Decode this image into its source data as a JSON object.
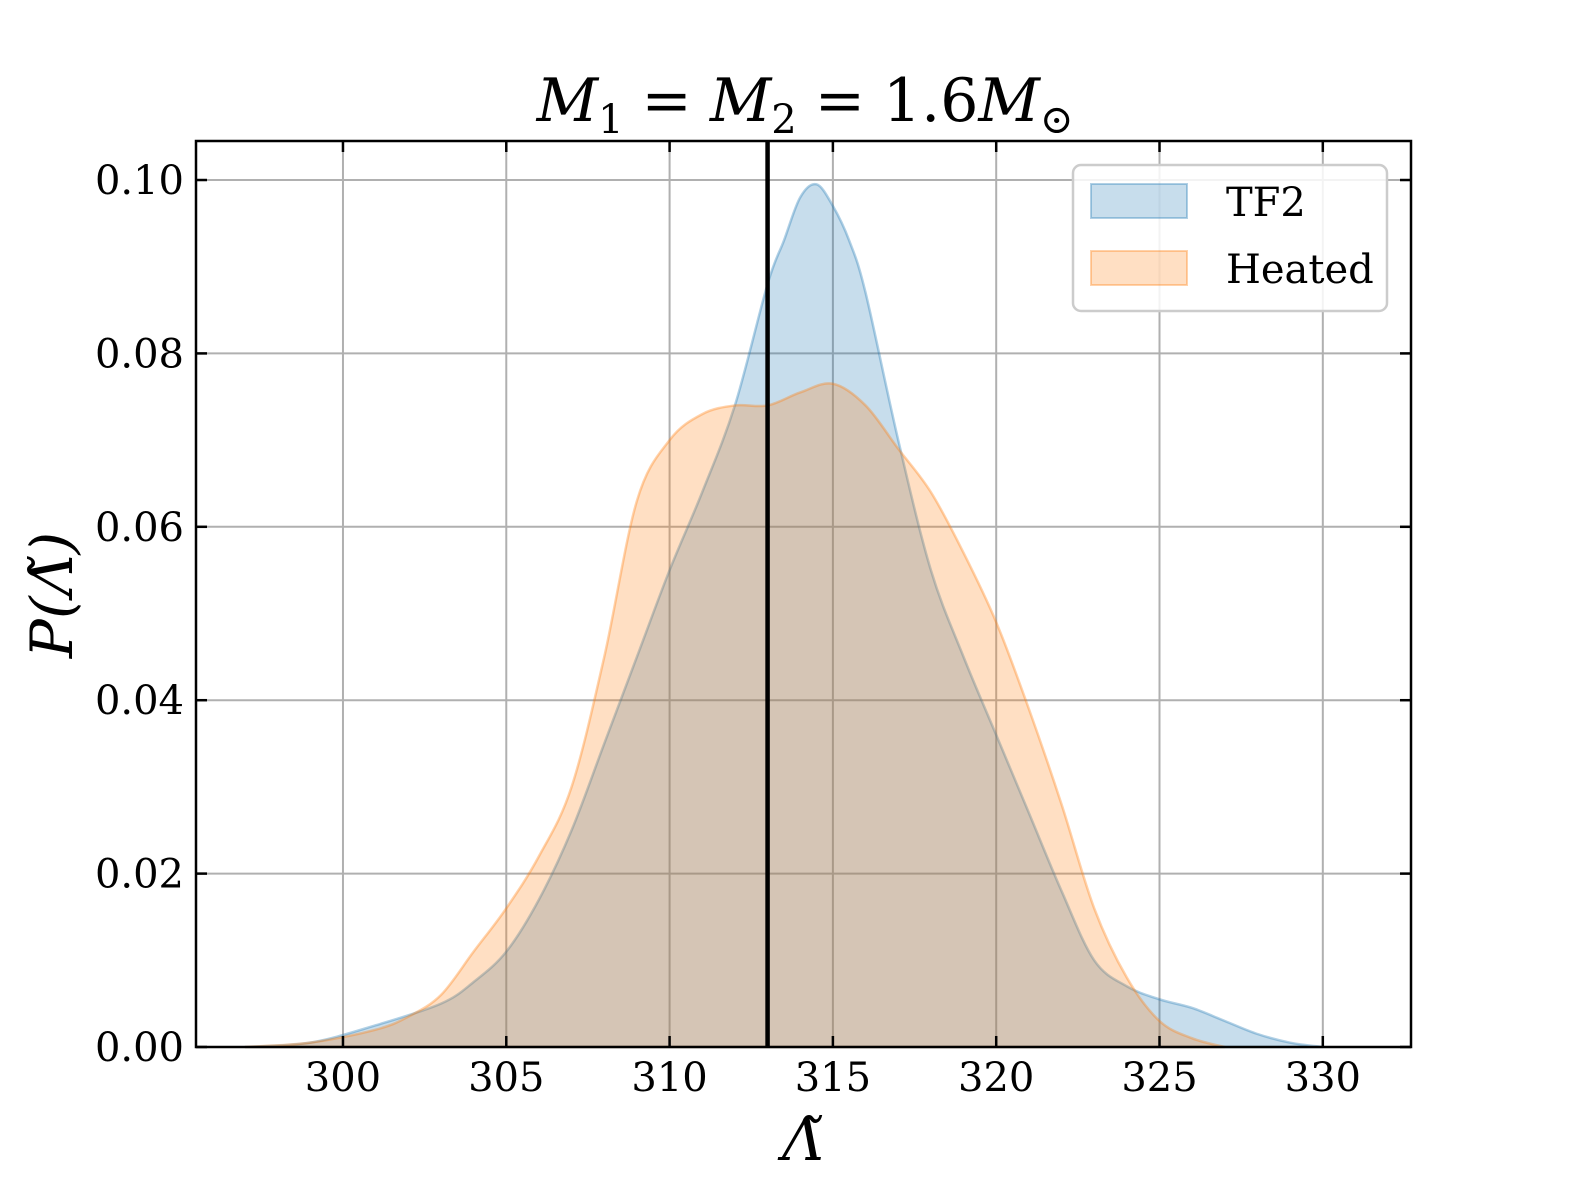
{
  "chart_data": {
    "type": "area",
    "title": {
      "symbol": "M",
      "sub1": "1",
      "sub2": "2",
      "value": "1.6",
      "unit_symbol": "M",
      "unit_sub": "⊙",
      "equals": "="
    },
    "xlabel": "Λ̃",
    "ylabel": "P(Λ̃)",
    "xlim": [
      295.5,
      332.7
    ],
    "ylim": [
      0.0,
      0.1045
    ],
    "xticks": [
      300,
      305,
      310,
      315,
      320,
      325,
      330
    ],
    "xtick_labels": [
      "300",
      "305",
      "310",
      "315",
      "320",
      "325",
      "330"
    ],
    "yticks": [
      0.0,
      0.02,
      0.04,
      0.06,
      0.08,
      0.1
    ],
    "ytick_labels": [
      "0.00",
      "0.02",
      "0.04",
      "0.06",
      "0.08",
      "0.10"
    ],
    "grid": true,
    "legend_position": "top-right",
    "vline": {
      "x": 313.0,
      "color": "#000000"
    },
    "series": [
      {
        "name": "TF2",
        "color": "#1f77b4",
        "alpha": 0.25,
        "x": [
          297,
          299,
          301,
          303,
          304,
          305,
          306,
          307,
          308,
          309,
          310,
          311,
          312,
          313,
          313.5,
          314,
          314.5,
          315,
          315.5,
          316,
          317,
          318,
          319,
          320,
          321,
          322,
          323,
          324,
          325,
          326,
          327,
          328,
          329,
          330
        ],
        "values": [
          0.0,
          0.0005,
          0.0025,
          0.005,
          0.0075,
          0.011,
          0.017,
          0.025,
          0.035,
          0.045,
          0.055,
          0.064,
          0.074,
          0.088,
          0.093,
          0.098,
          0.0995,
          0.097,
          0.093,
          0.087,
          0.07,
          0.055,
          0.045,
          0.036,
          0.027,
          0.018,
          0.01,
          0.007,
          0.0055,
          0.0045,
          0.003,
          0.0015,
          0.0005,
          0.0
        ]
      },
      {
        "name": "Heated",
        "color": "#ff7f0e",
        "alpha": 0.25,
        "x": [
          297,
          299,
          301,
          302,
          303,
          304,
          305,
          306,
          307,
          308,
          309,
          310,
          311,
          312,
          313,
          314,
          315,
          316,
          317,
          318,
          319,
          320,
          321,
          322,
          323,
          324,
          325,
          326,
          327
        ],
        "values": [
          0.0,
          0.0005,
          0.002,
          0.0035,
          0.006,
          0.011,
          0.016,
          0.022,
          0.03,
          0.045,
          0.063,
          0.07,
          0.073,
          0.074,
          0.074,
          0.0755,
          0.0765,
          0.074,
          0.069,
          0.064,
          0.057,
          0.049,
          0.039,
          0.028,
          0.016,
          0.008,
          0.003,
          0.001,
          0.0
        ]
      }
    ]
  }
}
